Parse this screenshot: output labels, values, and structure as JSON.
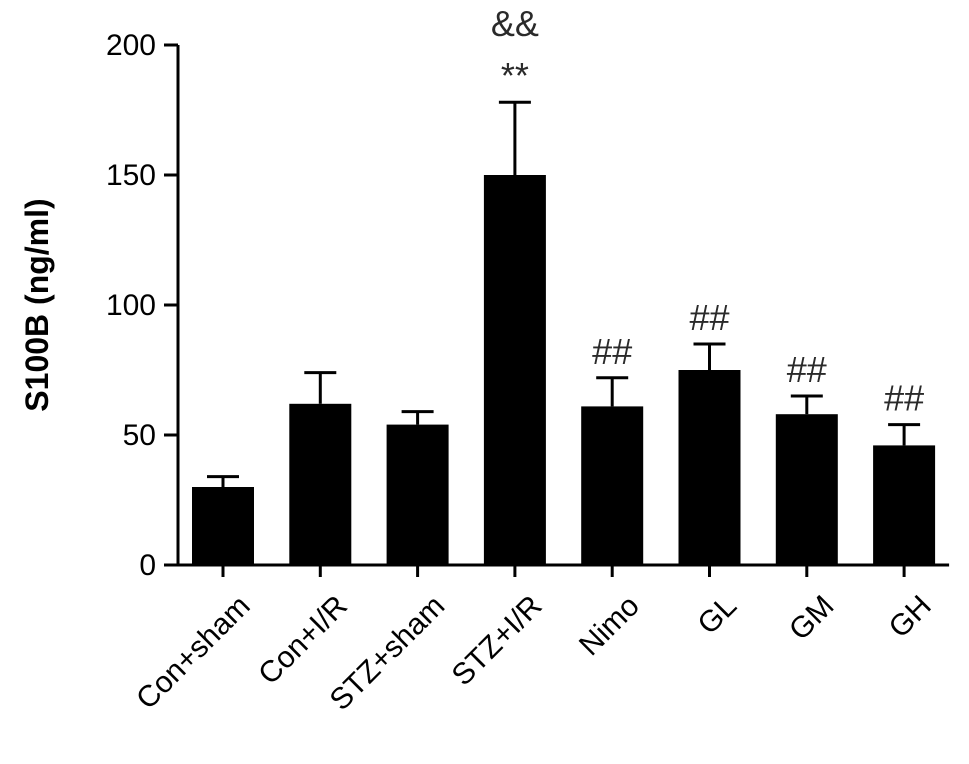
{
  "chart_data": {
    "type": "bar",
    "title": "",
    "xlabel": "",
    "ylabel": "S100B (ng/ml)",
    "ylim": [
      0,
      200
    ],
    "yticks": [
      0,
      50,
      100,
      150,
      200
    ],
    "grid": false,
    "legend": "none",
    "bar_color": "#000000",
    "categories": [
      "Con+sham",
      "Con+I/R",
      "STZ+sham",
      "STZ+I/R",
      "Nimo",
      "GL",
      "GM",
      "GH"
    ],
    "values": [
      30,
      62,
      54,
      150,
      61,
      75,
      58,
      46
    ],
    "errors": [
      4,
      12,
      5,
      28,
      11,
      10,
      7,
      8
    ],
    "annotations": [
      [],
      [],
      [],
      [
        "**",
        "&&"
      ],
      [
        "##"
      ],
      [
        "##"
      ],
      [
        "##"
      ],
      [
        "##"
      ]
    ]
  }
}
